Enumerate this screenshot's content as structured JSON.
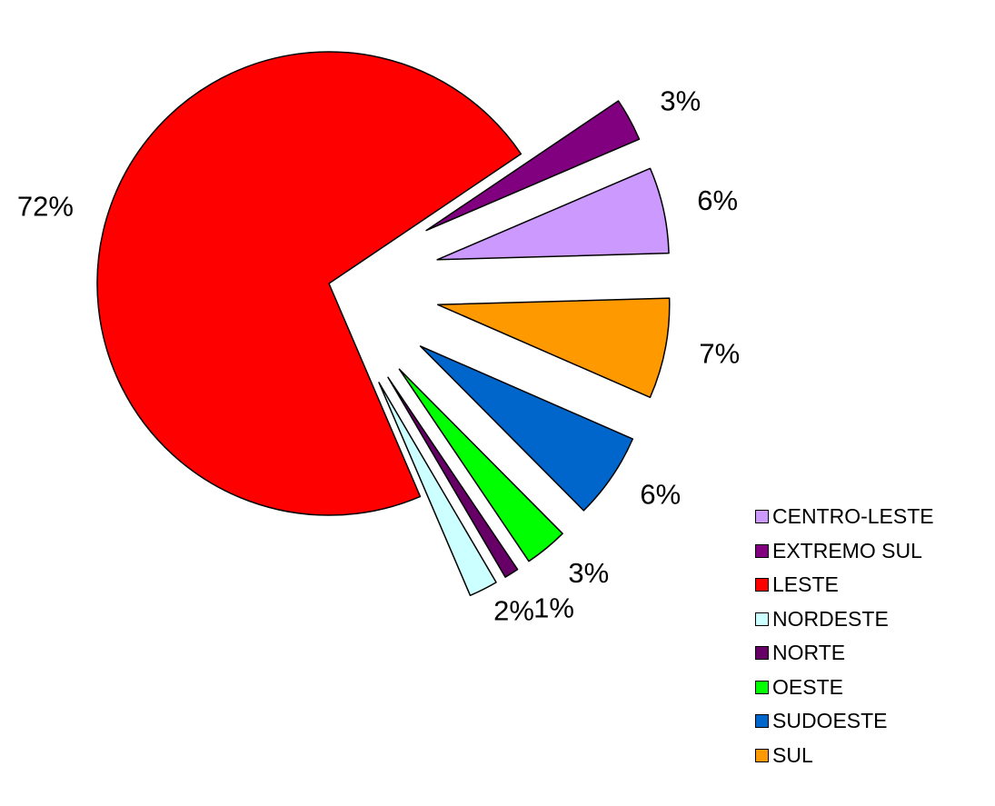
{
  "chart_data": {
    "type": "pie",
    "title": "",
    "start_angle_deg": 34,
    "direction": "counterclockwise",
    "slices": [
      {
        "label": "LESTE",
        "value": 72,
        "display": "72%",
        "color": "#ff0000",
        "exploded": false
      },
      {
        "label": "NORDESTE",
        "value": 2,
        "display": "2%",
        "color": "#ccffff",
        "exploded": true
      },
      {
        "label": "NORTE",
        "value": 1,
        "display": "1%",
        "color": "#660066",
        "exploded": true
      },
      {
        "label": "OESTE",
        "value": 3,
        "display": "3%",
        "color": "#00ff00",
        "exploded": true
      },
      {
        "label": "SUDOESTE",
        "value": 6,
        "display": "6%",
        "color": "#0066cc",
        "exploded": true
      },
      {
        "label": "SUL",
        "value": 7,
        "display": "7%",
        "color": "#ff9900",
        "exploded": true
      },
      {
        "label": "CENTRO-LESTE",
        "value": 6,
        "display": "6%",
        "color": "#cc99ff",
        "exploded": true
      },
      {
        "label": "EXTREMO SUL",
        "value": 3,
        "display": "3%",
        "color": "#800080",
        "exploded": true
      }
    ],
    "legend": {
      "position": "bottom-right",
      "entries": [
        {
          "label": "CENTRO-LESTE",
          "color": "#cc99ff"
        },
        {
          "label": "EXTREMO SUL",
          "color": "#800080"
        },
        {
          "label": "LESTE",
          "color": "#ff0000"
        },
        {
          "label": "NORDESTE",
          "color": "#ccffff"
        },
        {
          "label": "NORTE",
          "color": "#660066"
        },
        {
          "label": "OESTE",
          "color": "#00ff00"
        },
        {
          "label": "SUDOESTE",
          "color": "#0066cc"
        },
        {
          "label": "SUL",
          "color": "#ff9900"
        }
      ]
    }
  }
}
